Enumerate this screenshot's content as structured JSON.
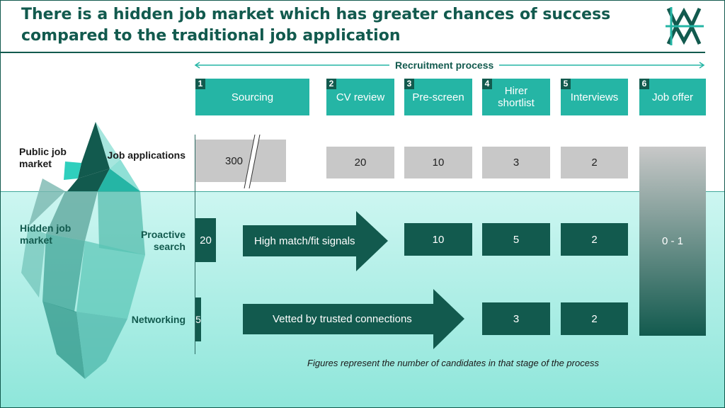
{
  "title": "There is a hidden job market which has greater chances of success compared to the traditional job application",
  "logo": {
    "letters": "WM"
  },
  "process_label": "Recruitment process",
  "stages": [
    {
      "num": "1",
      "label": "Sourcing"
    },
    {
      "num": "2",
      "label": "CV review"
    },
    {
      "num": "3",
      "label": "Pre-screen"
    },
    {
      "num": "4",
      "label": "Hirer shortlist"
    },
    {
      "num": "5",
      "label": "Interviews"
    },
    {
      "num": "6",
      "label": "Job offer"
    }
  ],
  "iceberg": {
    "public_label": "Public job market",
    "hidden_label": "Hidden job market"
  },
  "rows": {
    "job_applications": {
      "label": "Job applications",
      "sourcing": "300",
      "cv_review": "20",
      "pre_screen": "10",
      "hirer_shortlist": "3",
      "interviews": "2"
    },
    "proactive_search": {
      "label": "Proactive search",
      "sourcing": "20",
      "arrow": "High match/fit signals",
      "pre_screen": "10",
      "hirer_shortlist": "5",
      "interviews": "2"
    },
    "networking": {
      "label": "Networking",
      "sourcing": "5",
      "arrow": "Vetted by trusted connections",
      "hirer_shortlist": "3",
      "interviews": "2"
    }
  },
  "job_offer_value": "0 - 1",
  "footnote": "Figures represent the number of candidates in that stage of the process",
  "colors": {
    "dark_teal": "#125a4e",
    "teal": "#25b5a5",
    "grey": "#c8c8c8",
    "water": "#8ee6da"
  }
}
